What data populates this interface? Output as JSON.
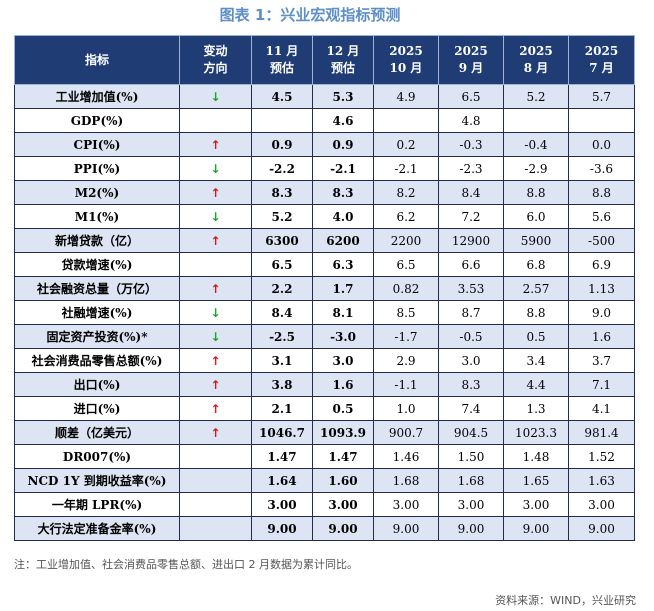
{
  "title": "图表 1：兴业宏观指标预测",
  "headers": {
    "indicator": "指标",
    "direction": [
      "变动",
      "方向"
    ],
    "nov": [
      "11 月",
      "预估"
    ],
    "dec": [
      "12 月",
      "预估"
    ],
    "oct": [
      "2025",
      "10 月"
    ],
    "sep": [
      "2025",
      "9 月"
    ],
    "aug": [
      "2025",
      "8 月"
    ],
    "jul": [
      "2025",
      "7 月"
    ]
  },
  "rows": [
    {
      "name": "工业增加值(%)",
      "dir": "↓",
      "dir_kind": "down",
      "nov": "4.5",
      "dec": "5.3",
      "oct": "4.9",
      "sep": "6.5",
      "aug": "5.2",
      "jul": "5.7"
    },
    {
      "name": "GDP(%)",
      "dir": "",
      "dir_kind": "",
      "nov": "",
      "dec": "4.6",
      "oct": "",
      "sep": "4.8",
      "aug": "",
      "jul": ""
    },
    {
      "name": "CPI(%)",
      "dir": "↑",
      "dir_kind": "up",
      "nov": "0.9",
      "dec": "0.9",
      "oct": "0.2",
      "sep": "-0.3",
      "aug": "-0.4",
      "jul": "0.0"
    },
    {
      "name": "PPI(%)",
      "dir": "↓",
      "dir_kind": "down",
      "nov": "-2.2",
      "dec": "-2.1",
      "oct": "-2.1",
      "sep": "-2.3",
      "aug": "-2.9",
      "jul": "-3.6"
    },
    {
      "name": "M2(%)",
      "dir": "↑",
      "dir_kind": "up",
      "nov": "8.3",
      "dec": "8.3",
      "oct": "8.2",
      "sep": "8.4",
      "aug": "8.8",
      "jul": "8.8"
    },
    {
      "name": "M1(%)",
      "dir": "↓",
      "dir_kind": "down",
      "nov": "5.2",
      "dec": "4.0",
      "oct": "6.2",
      "sep": "7.2",
      "aug": "6.0",
      "jul": "5.6"
    },
    {
      "name": "新增贷款（亿）",
      "dir": "↑",
      "dir_kind": "up",
      "nov": "6300",
      "dec": "6200",
      "oct": "2200",
      "sep": "12900",
      "aug": "5900",
      "jul": "-500"
    },
    {
      "name": "贷款增速(%)",
      "dir": "",
      "dir_kind": "",
      "nov": "6.5",
      "dec": "6.3",
      "oct": "6.5",
      "sep": "6.6",
      "aug": "6.8",
      "jul": "6.9"
    },
    {
      "name": "社会融资总量（万亿）",
      "dir": "↑",
      "dir_kind": "up",
      "nov": "2.2",
      "dec": "1.7",
      "oct": "0.82",
      "sep": "3.53",
      "aug": "2.57",
      "jul": "1.13"
    },
    {
      "name": "社融增速(%)",
      "dir": "↓",
      "dir_kind": "down",
      "nov": "8.4",
      "dec": "8.1",
      "oct": "8.5",
      "sep": "8.7",
      "aug": "8.8",
      "jul": "9.0"
    },
    {
      "name": "固定资产投资(%)*",
      "dir": "↓",
      "dir_kind": "down",
      "nov": "-2.5",
      "dec": "-3.0",
      "oct": "-1.7",
      "sep": "-0.5",
      "aug": "0.5",
      "jul": "1.6"
    },
    {
      "name": "社会消费品零售总额(%)",
      "dir": "↑",
      "dir_kind": "up",
      "nov": "3.1",
      "dec": "3.0",
      "oct": "2.9",
      "sep": "3.0",
      "aug": "3.4",
      "jul": "3.7"
    },
    {
      "name": "出口(%)",
      "dir": "↑",
      "dir_kind": "up",
      "nov": "3.8",
      "dec": "1.6",
      "oct": "-1.1",
      "sep": "8.3",
      "aug": "4.4",
      "jul": "7.1"
    },
    {
      "name": "进口(%)",
      "dir": "↑",
      "dir_kind": "up",
      "nov": "2.1",
      "dec": "0.5",
      "oct": "1.0",
      "sep": "7.4",
      "aug": "1.3",
      "jul": "4.1"
    },
    {
      "name": "顺差（亿美元）",
      "dir": "↑",
      "dir_kind": "up",
      "nov": "1046.7",
      "dec": "1093.9",
      "oct": "900.7",
      "sep": "904.5",
      "aug": "1023.3",
      "jul": "981.4"
    },
    {
      "name": "DR007(%)",
      "dir": "",
      "dir_kind": "",
      "nov": "1.47",
      "dec": "1.47",
      "oct": "1.46",
      "sep": "1.50",
      "aug": "1.48",
      "jul": "1.52"
    },
    {
      "name": "NCD 1Y 到期收益率(%)",
      "dir": "",
      "dir_kind": "",
      "nov": "1.64",
      "dec": "1.60",
      "oct": "1.68",
      "sep": "1.68",
      "aug": "1.65",
      "jul": "1.63"
    },
    {
      "name": "一年期 LPR(%)",
      "dir": "",
      "dir_kind": "",
      "nov": "3.00",
      "dec": "3.00",
      "oct": "3.00",
      "sep": "3.00",
      "aug": "3.00",
      "jul": "3.00"
    },
    {
      "name": "大行法定准备金率(%)",
      "dir": "",
      "dir_kind": "",
      "nov": "9.00",
      "dec": "9.00",
      "oct": "9.00",
      "sep": "9.00",
      "aug": "9.00",
      "jul": "9.00"
    }
  ],
  "note": "注：工业增加值、社会消费品零售总额、进出口 2 月数据为累计同比。",
  "source": "资料来源：WIND，兴业研究",
  "colors": {
    "header_bg": "#1f3c75",
    "stripe": "#dde4f3",
    "up_arrow": "#e0161b",
    "down_arrow": "#1aa526",
    "title": "#5c8fc7"
  }
}
